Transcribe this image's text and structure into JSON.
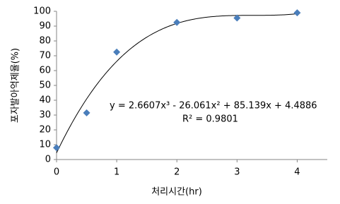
{
  "chart_data": {
    "type": "scatter",
    "x_label": "처리시간(hr)",
    "y_label": "포자발아억제율(%)",
    "series": [
      {
        "x": [
          0,
          0.5,
          1,
          2,
          3,
          4
        ],
        "values": [
          8,
          31.5,
          72.5,
          92.5,
          95.5,
          99
        ],
        "color": "#4a7ebb",
        "marker": "diamond"
      }
    ],
    "trendline": {
      "type": "polynomial",
      "coefficients": [
        2.6607,
        -26.061,
        85.139,
        4.4886
      ],
      "color": "#000000",
      "equation": "y = 2.6607x³ - 26.061x² + 85.139x + 4.4886",
      "r_squared_label": "R² = 0.9801"
    },
    "xlim": [
      0,
      4.5
    ],
    "xticks": [
      0,
      1,
      2,
      3,
      4
    ],
    "ylim": [
      0,
      100
    ],
    "yticks": [
      0,
      10,
      20,
      30,
      40,
      50,
      60,
      70,
      80,
      90,
      100
    ],
    "grid": false
  }
}
